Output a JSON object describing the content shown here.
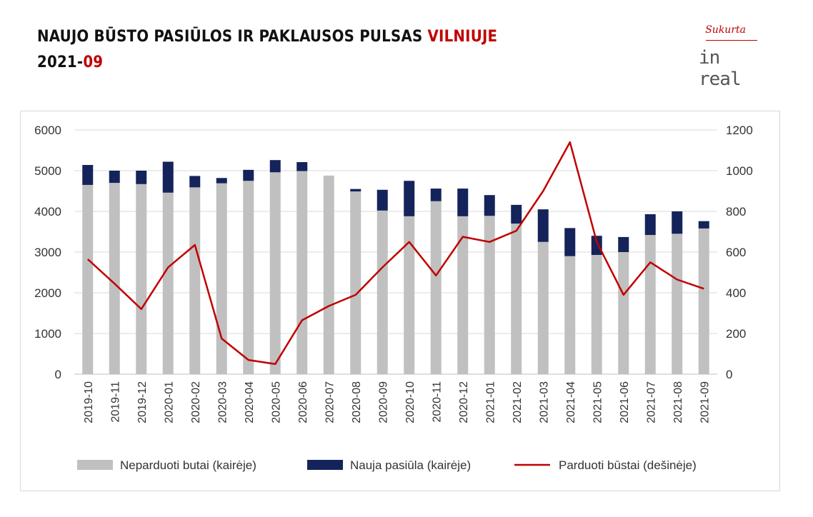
{
  "header": {
    "title_main": "NAUJO BŪSTO PASIŪLOS IR PAKLAUSOS PULSAS ",
    "title_city": "VILNIUJE",
    "period_year": "2021-",
    "period_month": "09"
  },
  "logo": {
    "top_text": "Sukurta",
    "bottom_text": "in real"
  },
  "colors": {
    "accent": "#c00000",
    "unsold": "#c0c0c0",
    "new_supply": "#14235a",
    "sold_line": "#c00000"
  },
  "chart_data": {
    "type": "bar",
    "stacked": true,
    "categories": [
      "2019-10",
      "2019-11",
      "2019-12",
      "2020-01",
      "2020-02",
      "2020-03",
      "2020-04",
      "2020-05",
      "2020-06",
      "2020-07",
      "2020-08",
      "2020-09",
      "2020-10",
      "2020-11",
      "2020-12",
      "2021-01",
      "2021-02",
      "2021-03",
      "2021-04",
      "2021-05",
      "2021-06",
      "2021-07",
      "2021-08",
      "2021-09"
    ],
    "series": [
      {
        "name": "Neparduoti butai (kairėje)",
        "type": "bar",
        "axis": "left",
        "values": [
          4650,
          4700,
          4670,
          4460,
          4590,
          4690,
          4750,
          4960,
          4990,
          4880,
          4490,
          4020,
          3880,
          4250,
          3880,
          3890,
          3700,
          3250,
          2900,
          2930,
          3000,
          3420,
          3450,
          3580
        ]
      },
      {
        "name": "Nauja pasiūla (kairėje)",
        "type": "bar",
        "axis": "left",
        "values": [
          490,
          300,
          330,
          760,
          280,
          130,
          270,
          300,
          220,
          0,
          60,
          510,
          870,
          310,
          680,
          510,
          460,
          800,
          690,
          470,
          370,
          510,
          550,
          180
        ]
      },
      {
        "name": "Parduoti būstai (dešinėje)",
        "type": "line",
        "axis": "right",
        "values": [
          565,
          445,
          320,
          525,
          635,
          175,
          70,
          50,
          265,
          335,
          390,
          525,
          650,
          485,
          675,
          650,
          705,
          900,
          1140,
          650,
          390,
          550,
          465,
          420
        ]
      }
    ],
    "left_axis": {
      "min": 0,
      "max": 6000,
      "ticks": [
        "0",
        "1000",
        "2000",
        "3000",
        "4000",
        "5000",
        "6000"
      ]
    },
    "right_axis": {
      "min": 0,
      "max": 1200,
      "ticks": [
        "0",
        "200",
        "400",
        "600",
        "800",
        "1000",
        "1200"
      ]
    },
    "grid": true,
    "legend_position": "bottom"
  }
}
